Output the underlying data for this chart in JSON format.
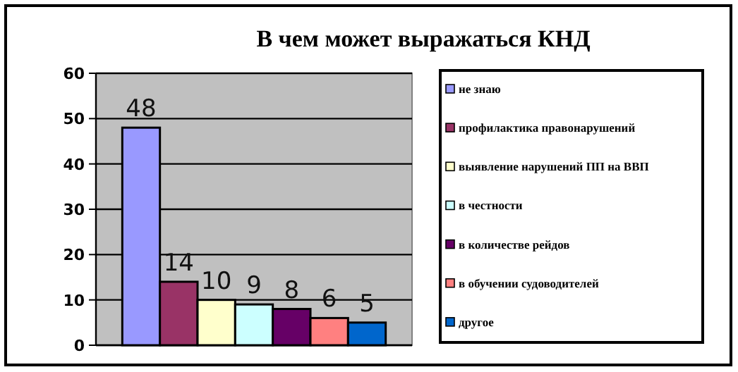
{
  "chart_data": {
    "type": "bar",
    "title": "В чем может выражаться  КНД",
    "categories": [
      null
    ],
    "series": [
      {
        "name": "не знаю",
        "color": "#9999ff",
        "values": [
          48
        ]
      },
      {
        "name": "профилактика  правонарушений",
        "color": "#993366",
        "values": [
          14
        ]
      },
      {
        "name": "выявление  нарушений ПП на ВВП",
        "color": "#ffffcc",
        "values": [
          10
        ]
      },
      {
        "name": "в честности",
        "color": "#ccffff",
        "values": [
          9
        ]
      },
      {
        "name": "в количестве  рейдов",
        "color": "#660066",
        "values": [
          8
        ]
      },
      {
        "name": "в обучении  судоводителей",
        "color": "#ff8080",
        "values": [
          6
        ]
      },
      {
        "name": "другое",
        "color": "#0066cc",
        "values": [
          5
        ]
      }
    ],
    "ylim": [
      0,
      60
    ],
    "yticks": [
      0,
      10,
      20,
      30,
      40,
      50,
      60
    ],
    "grid": "y",
    "legend": "right",
    "data_labels": true
  }
}
